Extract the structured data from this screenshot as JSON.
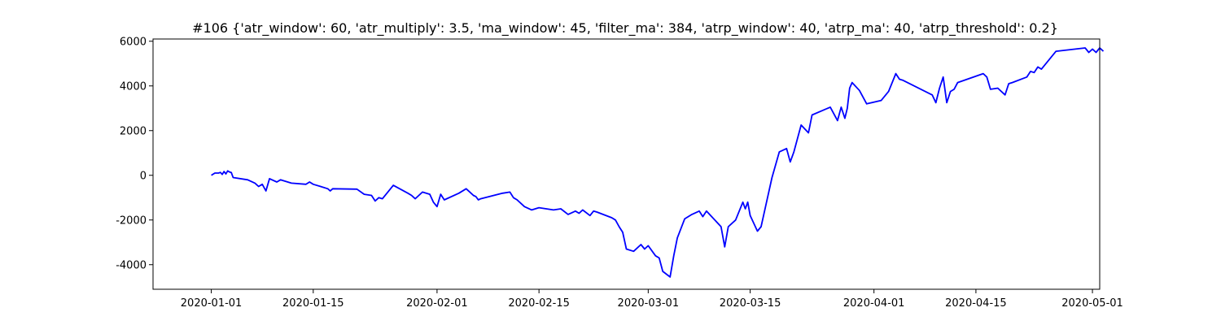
{
  "chart_data": {
    "type": "line",
    "title": "#106 {'atr_window': 60, 'atr_multiply': 3.5, 'ma_window': 45, 'filter_ma': 384, 'atrp_window': 40, 'atrp_ma': 40, 'atrp_threshold': 0.2}",
    "xlabel": "",
    "ylabel": "",
    "x_axis": {
      "kind": "date",
      "range": [
        "2019-12-24",
        "2020-05-02"
      ],
      "ticks": [
        "2020-01-01",
        "2020-01-15",
        "2020-02-01",
        "2020-02-15",
        "2020-03-01",
        "2020-03-15",
        "2020-04-01",
        "2020-04-15",
        "2020-05-01"
      ]
    },
    "y_axis": {
      "range": [
        -5100,
        6100
      ],
      "ticks": [
        -4000,
        -2000,
        0,
        2000,
        4000,
        6000
      ]
    },
    "grid": false,
    "legend": "none",
    "series": [
      {
        "color": "#0000ff",
        "points": [
          [
            "2020-01-01",
            0
          ],
          [
            "2020-01-01",
            100
          ],
          [
            "2020-01-02",
            100
          ],
          [
            "2020-01-02",
            130
          ],
          [
            "2020-01-02",
            40
          ],
          [
            "2020-01-02",
            170
          ],
          [
            "2020-01-03",
            60
          ],
          [
            "2020-01-03",
            200
          ],
          [
            "2020-01-03",
            150
          ],
          [
            "2020-01-03",
            120
          ],
          [
            "2020-01-04",
            -100
          ],
          [
            "2020-01-06",
            -200
          ],
          [
            "2020-01-07",
            -350
          ],
          [
            "2020-01-07",
            -500
          ],
          [
            "2020-01-08",
            -400
          ],
          [
            "2020-01-08",
            -700
          ],
          [
            "2020-01-09",
            -150
          ],
          [
            "2020-01-10",
            -300
          ],
          [
            "2020-01-10",
            -200
          ],
          [
            "2020-01-11",
            -250
          ],
          [
            "2020-01-12",
            -350
          ],
          [
            "2020-01-14",
            -400
          ],
          [
            "2020-01-14",
            -300
          ],
          [
            "2020-01-15",
            -400
          ],
          [
            "2020-01-16",
            -500
          ],
          [
            "2020-01-17",
            -600
          ],
          [
            "2020-01-17",
            -700
          ],
          [
            "2020-01-17",
            -600
          ],
          [
            "2020-01-21",
            -620
          ],
          [
            "2020-01-22",
            -850
          ],
          [
            "2020-01-23",
            -900
          ],
          [
            "2020-01-23",
            -1150
          ],
          [
            "2020-01-24",
            -1000
          ],
          [
            "2020-01-24",
            -1050
          ],
          [
            "2020-01-25",
            -850
          ],
          [
            "2020-01-26",
            -450
          ],
          [
            "2020-01-28",
            -800
          ],
          [
            "2020-01-28",
            -900
          ],
          [
            "2020-01-29",
            -1050
          ],
          [
            "2020-01-30",
            -750
          ],
          [
            "2020-01-31",
            -850
          ],
          [
            "2020-01-31",
            -1200
          ],
          [
            "2020-02-01",
            -1400
          ],
          [
            "2020-02-01",
            -850
          ],
          [
            "2020-02-02",
            -1100
          ],
          [
            "2020-02-04",
            -800
          ],
          [
            "2020-02-05",
            -600
          ],
          [
            "2020-02-05",
            -750
          ],
          [
            "2020-02-06",
            -900
          ],
          [
            "2020-02-06",
            -950
          ],
          [
            "2020-02-06",
            -1100
          ],
          [
            "2020-02-07",
            -1050
          ],
          [
            "2020-02-10",
            -800
          ],
          [
            "2020-02-11",
            -750
          ],
          [
            "2020-02-11",
            -1000
          ],
          [
            "2020-02-12",
            -1100
          ],
          [
            "2020-02-13",
            -1400
          ],
          [
            "2020-02-14",
            -1550
          ],
          [
            "2020-02-15",
            -1450
          ],
          [
            "2020-02-17",
            -1550
          ],
          [
            "2020-02-18",
            -1500
          ],
          [
            "2020-02-19",
            -1750
          ],
          [
            "2020-02-20",
            -1600
          ],
          [
            "2020-02-20",
            -1700
          ],
          [
            "2020-02-21",
            -1550
          ],
          [
            "2020-02-22",
            -1800
          ],
          [
            "2020-02-22",
            -1600
          ],
          [
            "2020-02-23",
            -1650
          ],
          [
            "2020-02-25",
            -1900
          ],
          [
            "2020-02-25",
            -2000
          ],
          [
            "2020-02-26",
            -2300
          ],
          [
            "2020-02-26",
            -2550
          ],
          [
            "2020-02-27",
            -3300
          ],
          [
            "2020-02-28",
            -3400
          ],
          [
            "2020-02-29",
            -3100
          ],
          [
            "2020-02-29",
            -3300
          ],
          [
            "2020-03-01",
            -3150
          ],
          [
            "2020-03-02",
            -3600
          ],
          [
            "2020-03-02",
            -3700
          ],
          [
            "2020-03-03",
            -4300
          ],
          [
            "2020-03-04",
            -4550
          ],
          [
            "2020-03-04",
            -3600
          ],
          [
            "2020-03-05",
            -2800
          ],
          [
            "2020-03-06",
            -1950
          ],
          [
            "2020-03-07",
            -1750
          ],
          [
            "2020-03-08",
            -1600
          ],
          [
            "2020-03-08",
            -1850
          ],
          [
            "2020-03-09",
            -1600
          ],
          [
            "2020-03-11",
            -2300
          ],
          [
            "2020-03-11",
            -3200
          ],
          [
            "2020-03-12",
            -2300
          ],
          [
            "2020-03-13",
            -2000
          ],
          [
            "2020-03-14",
            -1200
          ],
          [
            "2020-03-14",
            -1500
          ],
          [
            "2020-03-14",
            -1200
          ],
          [
            "2020-03-15",
            -1800
          ],
          [
            "2020-03-16",
            -2500
          ],
          [
            "2020-03-16",
            -2300
          ],
          [
            "2020-03-18",
            -100
          ],
          [
            "2020-03-19",
            1050
          ],
          [
            "2020-03-20",
            1200
          ],
          [
            "2020-03-20",
            600
          ],
          [
            "2020-03-21",
            1050
          ],
          [
            "2020-03-22",
            2250
          ],
          [
            "2020-03-23",
            1900
          ],
          [
            "2020-03-23",
            2700
          ],
          [
            "2020-03-26",
            3050
          ],
          [
            "2020-03-27",
            2450
          ],
          [
            "2020-03-27",
            3050
          ],
          [
            "2020-03-28",
            2550
          ],
          [
            "2020-03-28",
            3000
          ],
          [
            "2020-03-28",
            3900
          ],
          [
            "2020-03-29",
            4150
          ],
          [
            "2020-03-30",
            3800
          ],
          [
            "2020-03-31",
            3200
          ],
          [
            "2020-04-02",
            3350
          ],
          [
            "2020-04-03",
            3750
          ],
          [
            "2020-04-04",
            4550
          ],
          [
            "2020-04-04",
            4300
          ],
          [
            "2020-04-05",
            4250
          ],
          [
            "2020-04-09",
            3600
          ],
          [
            "2020-04-09",
            3250
          ],
          [
            "2020-04-10",
            3900
          ],
          [
            "2020-04-10",
            4400
          ],
          [
            "2020-04-11",
            3250
          ],
          [
            "2020-04-11",
            3750
          ],
          [
            "2020-04-12",
            3850
          ],
          [
            "2020-04-12",
            4150
          ],
          [
            "2020-04-16",
            4550
          ],
          [
            "2020-04-16",
            4400
          ],
          [
            "2020-04-17",
            3850
          ],
          [
            "2020-04-18",
            3900
          ],
          [
            "2020-04-19",
            3600
          ],
          [
            "2020-04-19",
            4100
          ],
          [
            "2020-04-20",
            4150
          ],
          [
            "2020-04-22",
            4400
          ],
          [
            "2020-04-22",
            4650
          ],
          [
            "2020-04-23",
            4600
          ],
          [
            "2020-04-23",
            4850
          ],
          [
            "2020-04-24",
            4750
          ],
          [
            "2020-04-26",
            5550
          ],
          [
            "2020-04-30",
            5700
          ],
          [
            "2020-04-30",
            5500
          ],
          [
            "2020-05-01",
            5650
          ],
          [
            "2020-05-01",
            5500
          ],
          [
            "2020-05-02",
            5700
          ],
          [
            "2020-05-02",
            5550
          ]
        ]
      }
    ]
  }
}
